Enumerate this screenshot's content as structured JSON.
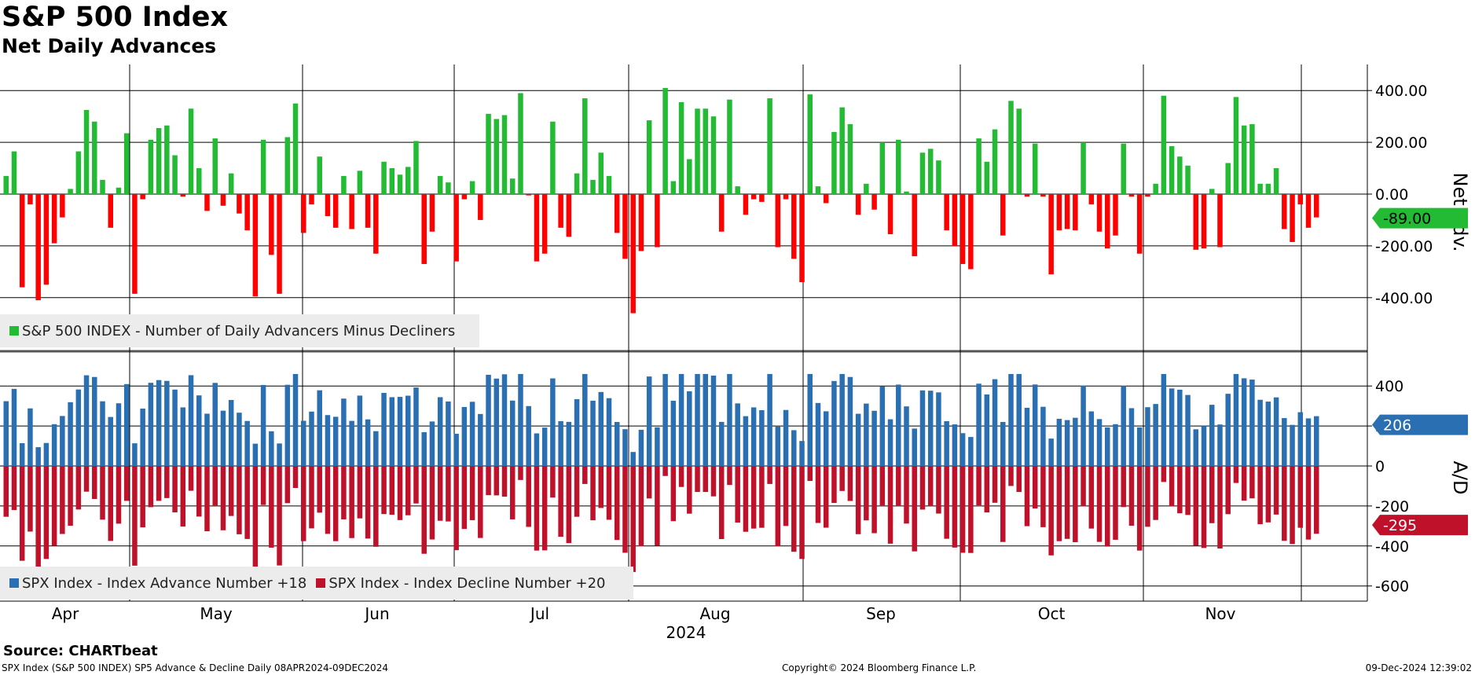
{
  "header": {
    "title": "S&P 500 Index",
    "subtitle": "Net Daily Advances"
  },
  "footer": {
    "source": "Source: CHARTbeat",
    "left": "SPX Index (S&P 500 INDEX) SP5 Advance & Decline  Daily 08APR2024-09DEC2024",
    "center": "Copyright© 2024 Bloomberg Finance L.P.",
    "right": "09-Dec-2024 12:39:02"
  },
  "colors": {
    "advance_green": "#22bb33",
    "decline_red": "#ff0000",
    "advance_blue": "#2b6fb3",
    "decline_crimson": "#c0112b"
  },
  "chart_data": [
    {
      "type": "bar",
      "title": "Net Daily Advances",
      "ylabel": "Net Adv.",
      "ylim": [
        -560,
        500
      ],
      "yticks": [
        "400.00",
        "200.00",
        "0.00",
        "-200.00",
        "-400.00"
      ],
      "current_value_label": "-89.00",
      "legend": [
        {
          "label": "S&P 500 INDEX - Number of Daily Advancers Minus Decliners",
          "color": "#22bb33"
        }
      ],
      "series": [
        {
          "name": "S&P 500 INDEX - Number of Daily Advancers Minus Decliners",
          "values": [
            70,
            165,
            -360,
            -40,
            -410,
            -350,
            -190,
            -90,
            20,
            165,
            325,
            280,
            55,
            -130,
            25,
            235,
            -385,
            -20,
            210,
            255,
            265,
            150,
            -10,
            330,
            100,
            -65,
            215,
            -45,
            80,
            -75,
            -140,
            -395,
            210,
            -235,
            -385,
            220,
            350,
            -150,
            -40,
            145,
            -85,
            -130,
            70,
            -135,
            90,
            -130,
            -230,
            125,
            100,
            75,
            105,
            205,
            -270,
            -145,
            70,
            45,
            -260,
            -20,
            50,
            -100,
            310,
            290,
            305,
            60,
            390,
            -5,
            -260,
            -230,
            280,
            -130,
            -165,
            80,
            370,
            55,
            160,
            70,
            -150,
            -250,
            -460,
            -220,
            285,
            -205,
            410,
            50,
            355,
            135,
            330,
            330,
            300,
            -145,
            365,
            30,
            -80,
            -20,
            -30,
            370,
            -205,
            -20,
            -250,
            -340,
            385,
            30,
            -35,
            240,
            335,
            270,
            -80,
            40,
            -60,
            200,
            -155,
            210,
            10,
            -240,
            160,
            175,
            130,
            -140,
            -200,
            -270,
            -290,
            215,
            125,
            250,
            -160,
            360,
            330,
            -10,
            195,
            -10,
            -310,
            -140,
            -135,
            -140,
            200,
            -40,
            -145,
            -210,
            -160,
            195,
            -10,
            -230,
            -10,
            40,
            380,
            185,
            145,
            110,
            -215,
            -210,
            20,
            -205,
            120,
            375,
            265,
            270,
            40,
            40,
            100,
            -135,
            -185,
            -40,
            -130,
            -90
          ]
        }
      ]
    },
    {
      "type": "bar",
      "title": "Advance / Decline",
      "ylabel": "A/D",
      "ylim": [
        -680,
        560
      ],
      "yticks": [
        "400",
        "200",
        "0",
        "-200",
        "-400",
        "-600"
      ],
      "current_advance_label": "206",
      "current_decline_label": "-295",
      "x_months": [
        "Apr",
        "May",
        "Jun",
        "Jul",
        "Aug",
        "Sep",
        "Oct",
        "Nov"
      ],
      "x_year": "2024",
      "legend": [
        {
          "label": "SPX Index - Index Advance Number +18",
          "color": "#2b6fb3"
        },
        {
          "label": "SPX Index - Index Decline Number +20",
          "color": "#c0112b"
        }
      ]
    }
  ]
}
